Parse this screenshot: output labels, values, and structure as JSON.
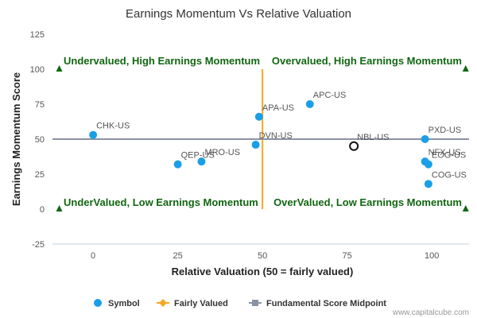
{
  "chart_data": {
    "type": "scatter",
    "title": "Earnings Momentum Vs Relative Valuation",
    "xlabel": "Relative Valuation (50 = fairly valued)",
    "ylabel": "Earnings Momentum Score",
    "xlim": [
      -12,
      111
    ],
    "ylim": [
      -25,
      125
    ],
    "x_ticks": [
      0,
      25,
      50,
      75,
      100
    ],
    "y_ticks": [
      -25,
      0,
      25,
      50,
      75,
      100,
      125
    ],
    "points": [
      {
        "label": "CHK-US",
        "x": 0,
        "y": 53
      },
      {
        "label": "QEP-US",
        "x": 25,
        "y": 32
      },
      {
        "label": "MRO-US",
        "x": 32,
        "y": 34
      },
      {
        "label": "APA-US",
        "x": 49,
        "y": 66
      },
      {
        "label": "DVN-US",
        "x": 48,
        "y": 46
      },
      {
        "label": "APC-US",
        "x": 64,
        "y": 75
      },
      {
        "label": "NBL-US",
        "x": 77,
        "y": 45,
        "highlight": true
      },
      {
        "label": "PXD-US",
        "x": 98,
        "y": 50
      },
      {
        "label": "NFX-US",
        "x": 98,
        "y": 34
      },
      {
        "label": "EOG-US",
        "x": 99,
        "y": 32
      },
      {
        "label": "COG-US",
        "x": 99,
        "y": 18
      }
    ],
    "fairly_valued_x": 50,
    "midpoint_y": 50,
    "quadrant_labels": {
      "top_left": "Undervalued, High Earnings Momentum",
      "top_right": "Overvalued, High Earnings Momentum",
      "bottom_left": "UnderValued, Low Earnings Momentum",
      "bottom_right": "OverValued, Low Earnings Momentum"
    },
    "legend": {
      "placement": "bottom",
      "items": [
        "Symbol",
        "Fairly Valued",
        "Fundamental Score Midpoint"
      ]
    },
    "credit": "www.capitalcube.com",
    "colors": {
      "symbol": "#1a9fe6",
      "fairly_valued": "#f5a623",
      "midpoint": "#8a93a3",
      "quadrant_text": "#116611",
      "marker": "#116611"
    }
  }
}
